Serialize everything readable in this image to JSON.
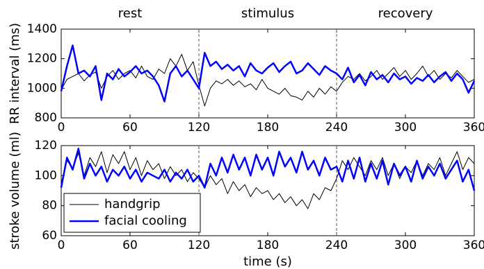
{
  "chart_data": [
    {
      "type": "line",
      "ylabel": "RR interval (ms)",
      "annotations": [
        {
          "text": "rest",
          "x": 60
        },
        {
          "text": "stimulus",
          "x": 180
        },
        {
          "text": "recovery",
          "x": 300
        }
      ],
      "vlines": [
        120,
        240
      ],
      "xlim": [
        0,
        360
      ],
      "xticks": [
        0,
        60,
        120,
        180,
        240,
        300,
        360
      ],
      "ylim": [
        800,
        1400
      ],
      "yticks": [
        800,
        1000,
        1200,
        1400
      ],
      "x": [
        0,
        5,
        10,
        15,
        20,
        25,
        30,
        35,
        40,
        45,
        50,
        55,
        60,
        65,
        70,
        75,
        80,
        85,
        90,
        95,
        100,
        105,
        110,
        115,
        120,
        125,
        130,
        135,
        140,
        145,
        150,
        155,
        160,
        165,
        170,
        175,
        180,
        185,
        190,
        195,
        200,
        205,
        210,
        215,
        220,
        225,
        230,
        235,
        240,
        245,
        250,
        255,
        260,
        265,
        270,
        275,
        280,
        285,
        290,
        295,
        300,
        305,
        310,
        315,
        320,
        325,
        330,
        335,
        340,
        345,
        350,
        355,
        360
      ],
      "series": [
        {
          "name": "handgrip",
          "color": "#000000",
          "width": 1,
          "values": [
            990,
            1060,
            1080,
            1100,
            1050,
            1090,
            1110,
            1000,
            1080,
            1120,
            1060,
            1100,
            1120,
            1070,
            1150,
            1080,
            1060,
            1130,
            1100,
            1200,
            1150,
            1230,
            1120,
            1180,
            1020,
            880,
            1000,
            1050,
            1030,
            1060,
            1020,
            1050,
            1010,
            1030,
            990,
            1060,
            1000,
            980,
            960,
            1000,
            950,
            940,
            920,
            980,
            940,
            1000,
            960,
            1010,
            980,
            1040,
            1080,
            1060,
            1100,
            1050,
            1080,
            1120,
            1060,
            1100,
            1140,
            1080,
            1120,
            1060,
            1100,
            1150,
            1080,
            1120,
            1060,
            1100,
            1070,
            1120,
            1080,
            1040,
            1060
          ]
        },
        {
          "name": "facial cooling",
          "color": "#0000ff",
          "width": 2.5,
          "values": [
            980,
            1150,
            1290,
            1100,
            1120,
            1080,
            1150,
            920,
            1100,
            1060,
            1130,
            1080,
            1110,
            1150,
            1100,
            1120,
            1080,
            1020,
            910,
            1100,
            1150,
            1080,
            1120,
            1060,
            1000,
            1240,
            1150,
            1180,
            1130,
            1160,
            1120,
            1150,
            1080,
            1170,
            1120,
            1100,
            1140,
            1170,
            1110,
            1150,
            1180,
            1100,
            1120,
            1170,
            1130,
            1090,
            1150,
            1120,
            1100,
            1060,
            1140,
            1040,
            1090,
            1020,
            1110,
            1060,
            1090,
            1040,
            1100,
            1060,
            1080,
            1030,
            1070,
            1050,
            1090,
            1040,
            1080,
            1110,
            1050,
            1100,
            1060,
            970,
            1050
          ]
        }
      ]
    },
    {
      "type": "line",
      "ylabel": "stroke volume (ml)",
      "xlabel": "time (s)",
      "vlines": [
        120,
        240
      ],
      "legend": "lower left",
      "xlim": [
        0,
        360
      ],
      "xticks": [
        0,
        60,
        120,
        180,
        240,
        300,
        360
      ],
      "ylim": [
        60,
        120
      ],
      "yticks": [
        60,
        80,
        100,
        120
      ],
      "x": [
        0,
        5,
        10,
        15,
        20,
        25,
        30,
        35,
        40,
        45,
        50,
        55,
        60,
        65,
        70,
        75,
        80,
        85,
        90,
        95,
        100,
        105,
        110,
        115,
        120,
        125,
        130,
        135,
        140,
        145,
        150,
        155,
        160,
        165,
        170,
        175,
        180,
        185,
        190,
        195,
        200,
        205,
        210,
        215,
        220,
        225,
        230,
        235,
        240,
        245,
        250,
        255,
        260,
        265,
        270,
        275,
        280,
        285,
        290,
        295,
        300,
        305,
        310,
        315,
        320,
        325,
        330,
        335,
        340,
        345,
        350,
        355,
        360
      ],
      "series": [
        {
          "name": "handgrip",
          "color": "#000000",
          "width": 1,
          "values": [
            95,
            110,
            105,
            115,
            100,
            112,
            106,
            116,
            102,
            114,
            108,
            116,
            104,
            112,
            100,
            110,
            104,
            108,
            98,
            106,
            100,
            104,
            96,
            102,
            98,
            92,
            100,
            94,
            98,
            88,
            96,
            90,
            94,
            86,
            92,
            88,
            90,
            84,
            88,
            82,
            86,
            80,
            84,
            78,
            88,
            84,
            92,
            90,
            98,
            110,
            104,
            112,
            106,
            100,
            110,
            104,
            112,
            100,
            108,
            98,
            106,
            102,
            110,
            100,
            108,
            104,
            112,
            100,
            108,
            116,
            104,
            112,
            108
          ]
        },
        {
          "name": "facial cooling",
          "color": "#0000ff",
          "width": 2.5,
          "values": [
            92,
            112,
            104,
            118,
            98,
            108,
            100,
            106,
            96,
            104,
            100,
            106,
            98,
            104,
            96,
            102,
            100,
            98,
            104,
            96,
            102,
            98,
            104,
            96,
            100,
            92,
            108,
            100,
            112,
            102,
            114,
            104,
            112,
            100,
            114,
            104,
            112,
            100,
            116,
            106,
            112,
            102,
            116,
            104,
            110,
            100,
            112,
            104,
            106,
            96,
            110,
            98,
            112,
            96,
            108,
            98,
            110,
            94,
            108,
            100,
            106,
            96,
            110,
            98,
            106,
            100,
            108,
            98,
            104,
            110,
            96,
            104,
            90
          ]
        }
      ]
    }
  ]
}
